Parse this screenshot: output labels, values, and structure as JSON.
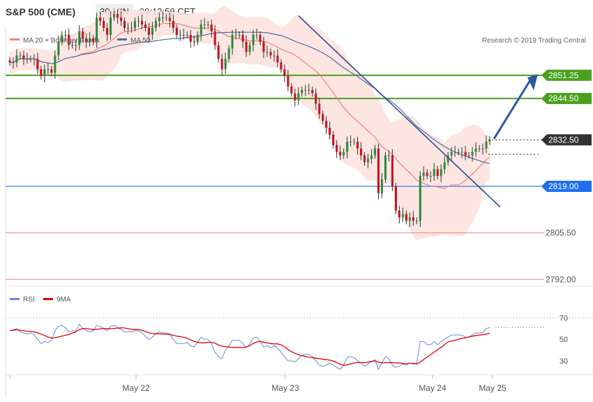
{
  "header": {
    "title": "S&P 500 (CME)",
    "timeframe": "30 MIN",
    "time": "09:13:59 CET"
  },
  "colors": {
    "bollinger_band": "#fde0dd",
    "ma20": "#f08080",
    "ma50": "#4a6fa5",
    "candle_up": "#2e8b3a",
    "candle_down": "#c8141e",
    "resistance": "#4aa01e",
    "support_blue": "#3f7fe0",
    "support_red": "#f08080",
    "trend": "#2e4d8f",
    "last_price": "#333333",
    "rsi": "#6688dd",
    "rsi_ma": "#e00000"
  },
  "chart_data": [
    {
      "type": "candlestick",
      "legend": [
        "MA 20 + Bollinger Bands",
        "MA 50"
      ],
      "watermark": "Research © 2019 Trading Central",
      "x_labels": [
        "May 22",
        "May 23",
        "May 24",
        "May 25"
      ],
      "ylim": [
        2788,
        2865
      ],
      "levels": [
        {
          "value": 2851.25,
          "label": "2851.25",
          "style": "green-filled"
        },
        {
          "value": 2844.5,
          "label": "2844.50",
          "style": "green-filled"
        },
        {
          "value": 2832.5,
          "label": "2832.50",
          "style": "dark-filled"
        },
        {
          "value": 2819.0,
          "label": "2819.00",
          "style": "blue-filled"
        },
        {
          "value": 2805.5,
          "label": "2805.50",
          "style": "red-text"
        },
        {
          "value": 2792.0,
          "label": "2792.00",
          "style": "red-text"
        }
      ],
      "close": [
        2855,
        2855,
        2857,
        2857,
        2856,
        2856,
        2856,
        2856,
        2853,
        2851,
        2853,
        2853,
        2852,
        2857,
        2861,
        2863,
        2863,
        2860,
        2860,
        2860,
        2864,
        2862,
        2861,
        2862,
        2861,
        2868,
        2867,
        2865,
        2863,
        2868,
        2869,
        2868,
        2867,
        2865,
        2865,
        2865,
        2867,
        2867,
        2866,
        2865,
        2863,
        2865,
        2867,
        2868,
        2868,
        2868,
        2867,
        2865,
        2863,
        2863,
        2863,
        2863,
        2861,
        2861,
        2863,
        2866,
        2866,
        2866,
        2864,
        2860,
        2856,
        2853,
        2856,
        2859,
        2863,
        2863,
        2863,
        2861,
        2858,
        2860,
        2863,
        2863,
        2861,
        2858,
        2858,
        2857,
        2857,
        2855,
        2853,
        2851,
        2848,
        2846,
        2844,
        2846,
        2847,
        2847,
        2847,
        2846,
        2843,
        2840,
        2838,
        2836,
        2834,
        2831,
        2829,
        2828,
        2829,
        2832,
        2832,
        2832,
        2830,
        2828,
        2826,
        2827,
        2828,
        2830,
        2817,
        2821,
        2828,
        2828,
        2819,
        2812,
        2810,
        2811,
        2809,
        2810,
        2809,
        2809,
        2822,
        2823,
        2822,
        2822,
        2824,
        2822,
        2824,
        2826,
        2828,
        2829,
        2829,
        2829,
        2829,
        2828,
        2828,
        2829,
        2830,
        2830,
        2830,
        2832,
        2832.5
      ],
      "series": [
        {
          "name": "RSI",
          "pane": "rsi",
          "ylim": [
            17,
            80
          ],
          "ticks": [
            30,
            50,
            70
          ]
        },
        {
          "name": "9MA",
          "pane": "rsi"
        }
      ]
    }
  ],
  "rsi_values": [
    58,
    59,
    60,
    57,
    56,
    55,
    56,
    54,
    50,
    46,
    48,
    47,
    49,
    58,
    62,
    63,
    61,
    57,
    58,
    58,
    64,
    60,
    58,
    57,
    58,
    63,
    62,
    60,
    58,
    62,
    63,
    61,
    59,
    57,
    57,
    57,
    58,
    58,
    56,
    53,
    50,
    52,
    55,
    57,
    56,
    56,
    55,
    50,
    46,
    46,
    46,
    47,
    44,
    43,
    47,
    52,
    50,
    50,
    46,
    38,
    34,
    32,
    40,
    44,
    49,
    49,
    49,
    46,
    42,
    46,
    51,
    52,
    48,
    43,
    44,
    42,
    44,
    42,
    38,
    34,
    30,
    30,
    29,
    32,
    35,
    36,
    36,
    34,
    30,
    26,
    25,
    26,
    28,
    26,
    24,
    22,
    26,
    33,
    34,
    33,
    30,
    28,
    25,
    27,
    29,
    31,
    22,
    28,
    34,
    32,
    26,
    24,
    25,
    27,
    26,
    28,
    27,
    28,
    48,
    48,
    45,
    45,
    48,
    45,
    48,
    50,
    52,
    54,
    54,
    54,
    54,
    52,
    52,
    54,
    56,
    56,
    56,
    60,
    61
  ]
}
